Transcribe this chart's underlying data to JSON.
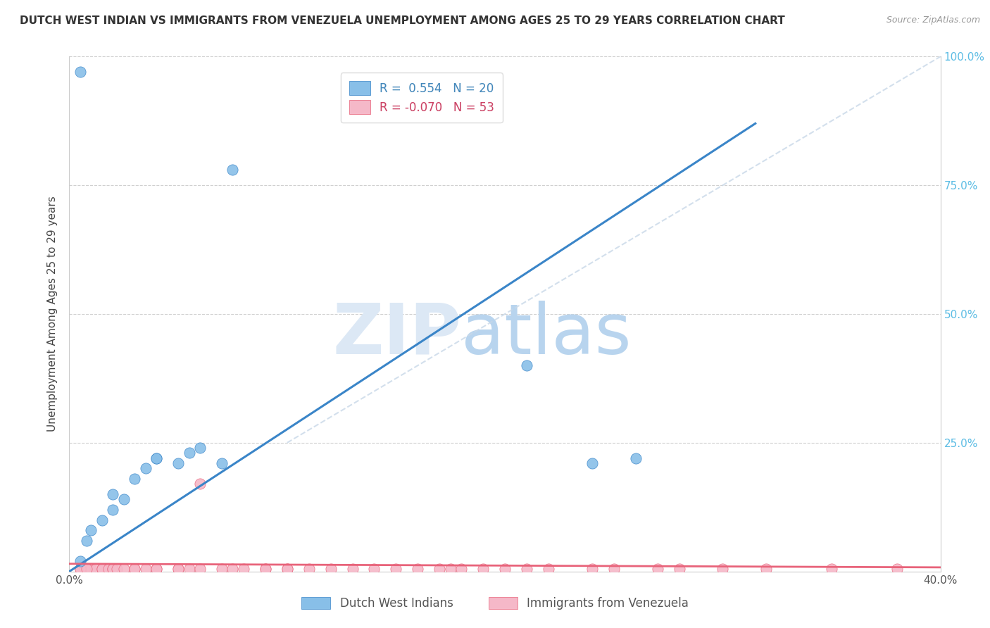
{
  "title": "DUTCH WEST INDIAN VS IMMIGRANTS FROM VENEZUELA UNEMPLOYMENT AMONG AGES 25 TO 29 YEARS CORRELATION CHART",
  "source": "Source: ZipAtlas.com",
  "ylabel": "Unemployment Among Ages 25 to 29 years",
  "xlim": [
    0.0,
    0.4
  ],
  "ylim": [
    0.0,
    1.0
  ],
  "xticks": [
    0.0,
    0.1,
    0.2,
    0.3,
    0.4
  ],
  "xticklabels": [
    "0.0%",
    "",
    "",
    "",
    "40.0%"
  ],
  "yticks": [
    0.0,
    0.25,
    0.5,
    0.75,
    1.0
  ],
  "yticklabels_right": [
    "",
    "25.0%",
    "50.0%",
    "75.0%",
    "100.0%"
  ],
  "legend_blue_label": "Dutch West Indians",
  "legend_pink_label": "Immigrants from Venezuela",
  "R_blue": "0.554",
  "N_blue": "20",
  "R_pink": "-0.070",
  "N_pink": "53",
  "blue_color": "#88bfe8",
  "pink_color": "#f5b8c8",
  "blue_line_color": "#3a85c8",
  "pink_line_color": "#e8637a",
  "ref_line_color": "#c8d8e8",
  "watermark_zip": "ZIP",
  "watermark_atlas": "atlas",
  "background": "#ffffff",
  "blue_scatter_x": [
    0.005,
    0.008,
    0.01,
    0.015,
    0.02,
    0.02,
    0.025,
    0.03,
    0.035,
    0.04,
    0.04,
    0.05,
    0.055,
    0.06,
    0.07,
    0.075,
    0.24,
    0.26,
    0.005,
    0.21
  ],
  "blue_scatter_y": [
    0.02,
    0.06,
    0.08,
    0.1,
    0.12,
    0.15,
    0.14,
    0.18,
    0.2,
    0.22,
    0.22,
    0.21,
    0.23,
    0.24,
    0.21,
    0.78,
    0.21,
    0.22,
    0.97,
    0.4
  ],
  "pink_scatter_x": [
    0.005,
    0.007,
    0.008,
    0.009,
    0.01,
    0.012,
    0.015,
    0.015,
    0.018,
    0.02,
    0.02,
    0.022,
    0.025,
    0.03,
    0.03,
    0.035,
    0.04,
    0.04,
    0.05,
    0.05,
    0.055,
    0.06,
    0.07,
    0.075,
    0.08,
    0.09,
    0.09,
    0.1,
    0.1,
    0.11,
    0.12,
    0.13,
    0.14,
    0.15,
    0.16,
    0.17,
    0.175,
    0.18,
    0.19,
    0.2,
    0.21,
    0.22,
    0.24,
    0.25,
    0.27,
    0.28,
    0.3,
    0.32,
    0.35,
    0.38,
    0.005,
    0.008,
    0.06
  ],
  "pink_scatter_y": [
    0.005,
    0.005,
    0.005,
    0.005,
    0.005,
    0.005,
    0.005,
    0.005,
    0.005,
    0.005,
    0.005,
    0.005,
    0.005,
    0.005,
    0.005,
    0.005,
    0.005,
    0.005,
    0.005,
    0.005,
    0.005,
    0.005,
    0.005,
    0.005,
    0.005,
    0.005,
    0.005,
    0.005,
    0.005,
    0.005,
    0.005,
    0.005,
    0.005,
    0.005,
    0.005,
    0.005,
    0.005,
    0.005,
    0.005,
    0.005,
    0.005,
    0.005,
    0.005,
    0.005,
    0.005,
    0.005,
    0.005,
    0.005,
    0.005,
    0.005,
    0.005,
    0.005,
    0.17
  ],
  "blue_line_x": [
    0.0,
    0.315
  ],
  "blue_line_y": [
    0.0,
    0.87
  ],
  "pink_line_x": [
    0.0,
    0.4
  ],
  "pink_line_y": [
    0.015,
    0.008
  ],
  "ref_line_x": [
    0.1,
    0.4
  ],
  "ref_line_y": [
    0.25,
    1.0
  ]
}
